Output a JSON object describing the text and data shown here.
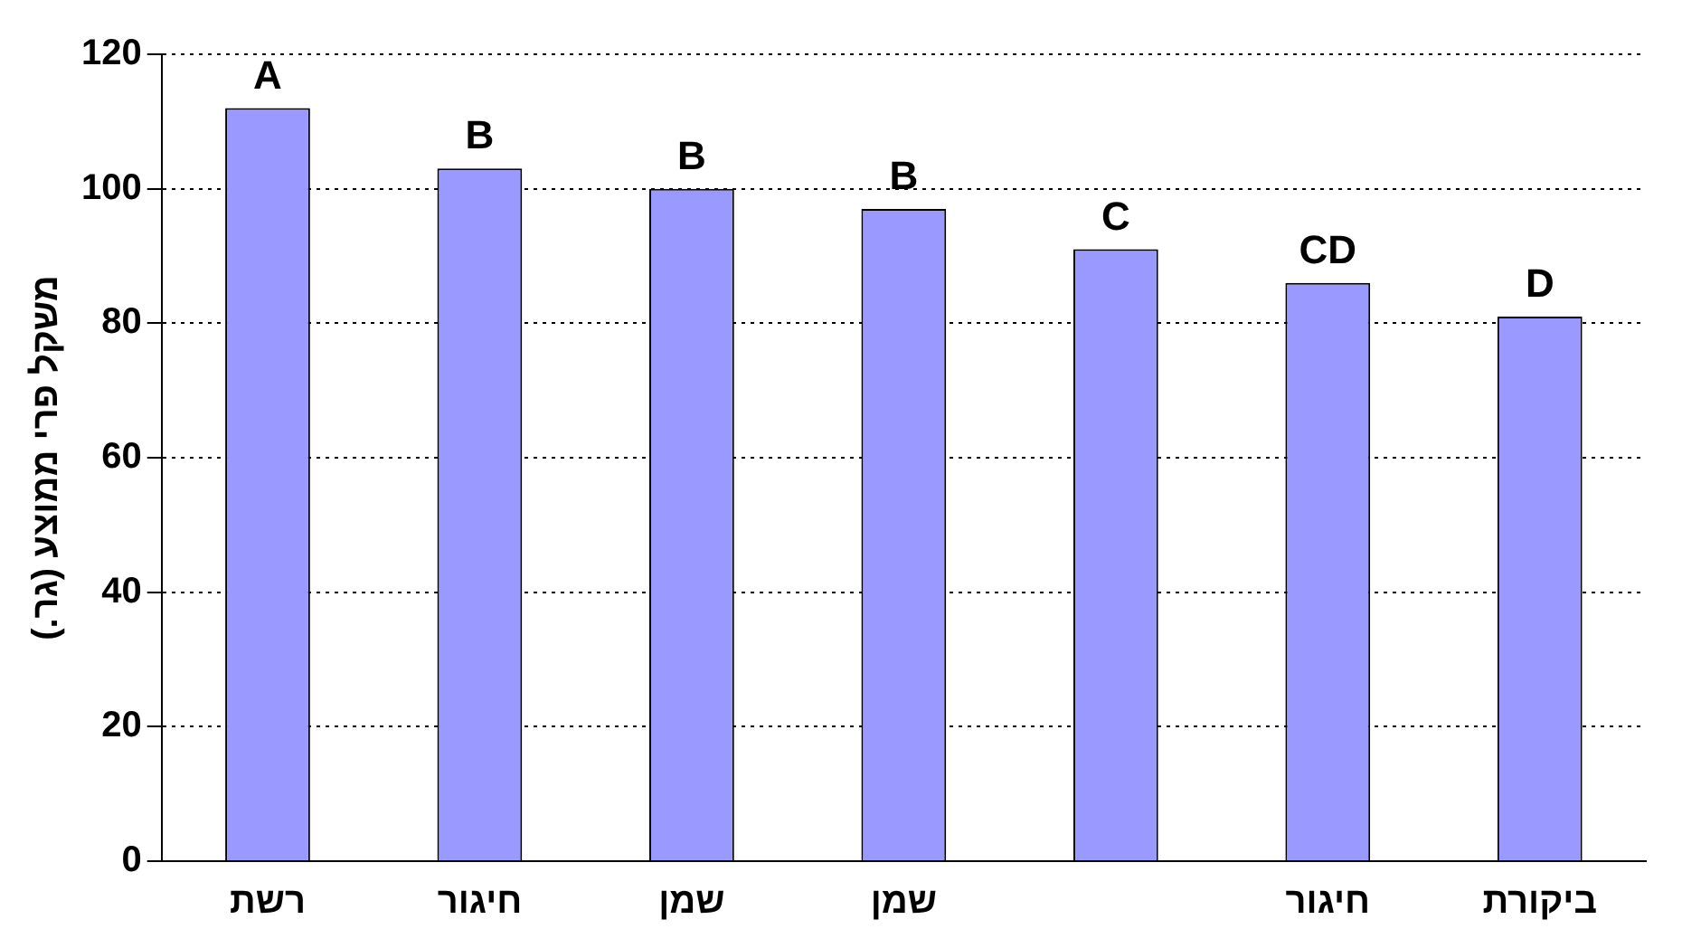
{
  "chart_data": {
    "type": "bar",
    "ylabel": "משקל פרי ממוצע (גר.)",
    "categories": [
      "רשת",
      "חיגור",
      "שמן",
      "שמן",
      null,
      "חיגור",
      "ביקורת"
    ],
    "values": [
      112,
      103,
      100,
      97,
      91,
      86,
      81
    ],
    "color": "#9999ff",
    "ylim": [
      0,
      120
    ],
    "yticks": [
      0,
      20,
      40,
      60,
      80,
      100,
      120
    ],
    "grid": "y",
    "legend": false,
    "annotations": [
      "A",
      "B",
      "B",
      "B",
      "C",
      "CD",
      "D"
    ]
  }
}
